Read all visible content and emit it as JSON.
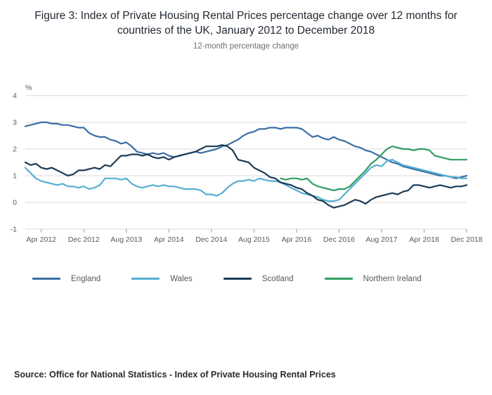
{
  "page": {
    "source": "Source: Office for National Statistics - Index of Private Housing Rental Prices"
  },
  "chart_data": {
    "type": "line",
    "title": "Figure 3: Index of Private Housing Rental Prices percentage change over 12 months for countries of the UK, January 2012 to December 2018",
    "subtitle": "12-month percentage change",
    "ylabel": "%",
    "ylim": [
      -1,
      4
    ],
    "yticks": [
      4,
      3,
      2,
      1,
      0,
      -1
    ],
    "x_start": "Jan 2012",
    "x_end": "Dec 2018",
    "x_frequency": "monthly",
    "x_points": 84,
    "x_tick_indices": [
      3,
      11,
      19,
      27,
      35,
      43,
      51,
      59,
      67,
      75,
      83
    ],
    "x_tick_labels": [
      "Apr 2012",
      "Dec 2012",
      "Aug 2013",
      "Apr 2014",
      "Dec 2014",
      "Aug 2015",
      "Apr 2016",
      "Dec 2016",
      "Aug 2017",
      "Apr 2018",
      "Dec 2018"
    ],
    "grid": "horizontal",
    "legend_position": "bottom",
    "series": [
      {
        "name": "England",
        "color": "#3a6ea5",
        "values": [
          2.85,
          2.9,
          2.95,
          3.0,
          3.0,
          2.95,
          2.95,
          2.9,
          2.9,
          2.85,
          2.8,
          2.8,
          2.6,
          2.5,
          2.45,
          2.45,
          2.35,
          2.3,
          2.2,
          2.25,
          2.1,
          1.9,
          1.85,
          1.8,
          1.85,
          1.8,
          1.85,
          1.75,
          1.7,
          1.75,
          1.8,
          1.85,
          1.9,
          1.85,
          1.9,
          1.95,
          2.0,
          2.1,
          2.15,
          2.25,
          2.35,
          2.5,
          2.6,
          2.65,
          2.75,
          2.75,
          2.8,
          2.8,
          2.75,
          2.8,
          2.8,
          2.8,
          2.75,
          2.6,
          2.45,
          2.5,
          2.4,
          2.35,
          2.45,
          2.35,
          2.3,
          2.2,
          2.1,
          2.05,
          1.95,
          1.9,
          1.8,
          1.7,
          1.6,
          1.5,
          1.45,
          1.35,
          1.3,
          1.25,
          1.2,
          1.15,
          1.1,
          1.05,
          1.0,
          1.0,
          0.95,
          0.9,
          0.95,
          1.0
        ]
      },
      {
        "name": "Wales",
        "color": "#56aed2",
        "values": [
          1.3,
          1.1,
          0.9,
          0.8,
          0.75,
          0.7,
          0.65,
          0.7,
          0.6,
          0.6,
          0.55,
          0.6,
          0.5,
          0.55,
          0.65,
          0.9,
          0.9,
          0.9,
          0.85,
          0.9,
          0.7,
          0.6,
          0.55,
          0.6,
          0.65,
          0.6,
          0.65,
          0.6,
          0.6,
          0.55,
          0.5,
          0.5,
          0.5,
          0.45,
          0.3,
          0.3,
          0.25,
          0.35,
          0.55,
          0.7,
          0.8,
          0.8,
          0.85,
          0.8,
          0.9,
          0.85,
          0.8,
          0.8,
          0.75,
          0.65,
          0.55,
          0.45,
          0.35,
          0.3,
          0.25,
          0.2,
          0.1,
          0.05,
          0.05,
          0.1,
          0.3,
          0.5,
          0.7,
          0.9,
          1.1,
          1.3,
          1.4,
          1.35,
          1.55,
          1.6,
          1.5,
          1.4,
          1.35,
          1.3,
          1.25,
          1.2,
          1.15,
          1.1,
          1.05,
          1.0,
          0.95,
          0.95,
          0.9,
          0.9
        ]
      },
      {
        "name": "Scotland",
        "color": "#1b3a54",
        "values": [
          1.5,
          1.4,
          1.45,
          1.3,
          1.25,
          1.3,
          1.2,
          1.1,
          1.0,
          1.05,
          1.2,
          1.2,
          1.25,
          1.3,
          1.25,
          1.4,
          1.35,
          1.55,
          1.75,
          1.75,
          1.8,
          1.8,
          1.75,
          1.8,
          1.7,
          1.65,
          1.7,
          1.6,
          1.7,
          1.75,
          1.8,
          1.85,
          1.9,
          2.0,
          2.1,
          2.1,
          2.1,
          2.15,
          2.1,
          1.95,
          1.6,
          1.55,
          1.5,
          1.3,
          1.2,
          1.1,
          0.95,
          0.9,
          0.75,
          0.7,
          0.65,
          0.55,
          0.5,
          0.35,
          0.25,
          0.1,
          0.05,
          -0.1,
          -0.2,
          -0.15,
          -0.1,
          0.0,
          0.1,
          0.05,
          -0.05,
          0.1,
          0.2,
          0.25,
          0.3,
          0.35,
          0.3,
          0.4,
          0.45,
          0.65,
          0.65,
          0.6,
          0.55,
          0.6,
          0.65,
          0.6,
          0.55,
          0.6,
          0.6,
          0.65
        ]
      },
      {
        "name": "Northern Ireland",
        "color": "#2f9e64",
        "values": [
          null,
          null,
          null,
          null,
          null,
          null,
          null,
          null,
          null,
          null,
          null,
          null,
          null,
          null,
          null,
          null,
          null,
          null,
          null,
          null,
          null,
          null,
          null,
          null,
          null,
          null,
          null,
          null,
          null,
          null,
          null,
          null,
          null,
          null,
          null,
          null,
          null,
          null,
          null,
          null,
          null,
          null,
          null,
          null,
          null,
          null,
          null,
          null,
          0.9,
          0.85,
          0.9,
          0.9,
          0.85,
          0.9,
          0.7,
          0.6,
          0.55,
          0.5,
          0.45,
          0.5,
          0.5,
          0.6,
          0.8,
          1.0,
          1.2,
          1.45,
          1.6,
          1.8,
          2.0,
          2.1,
          2.05,
          2.0,
          2.0,
          1.95,
          2.0,
          2.0,
          1.95,
          1.75,
          1.7,
          1.65,
          1.6,
          1.6,
          1.6,
          1.6
        ]
      }
    ],
    "style": {
      "grid_color": "#d9d9d9",
      "tick_color": "#9b9b9b",
      "tick_label_color": "#595959",
      "line_width": 2.2
    }
  }
}
